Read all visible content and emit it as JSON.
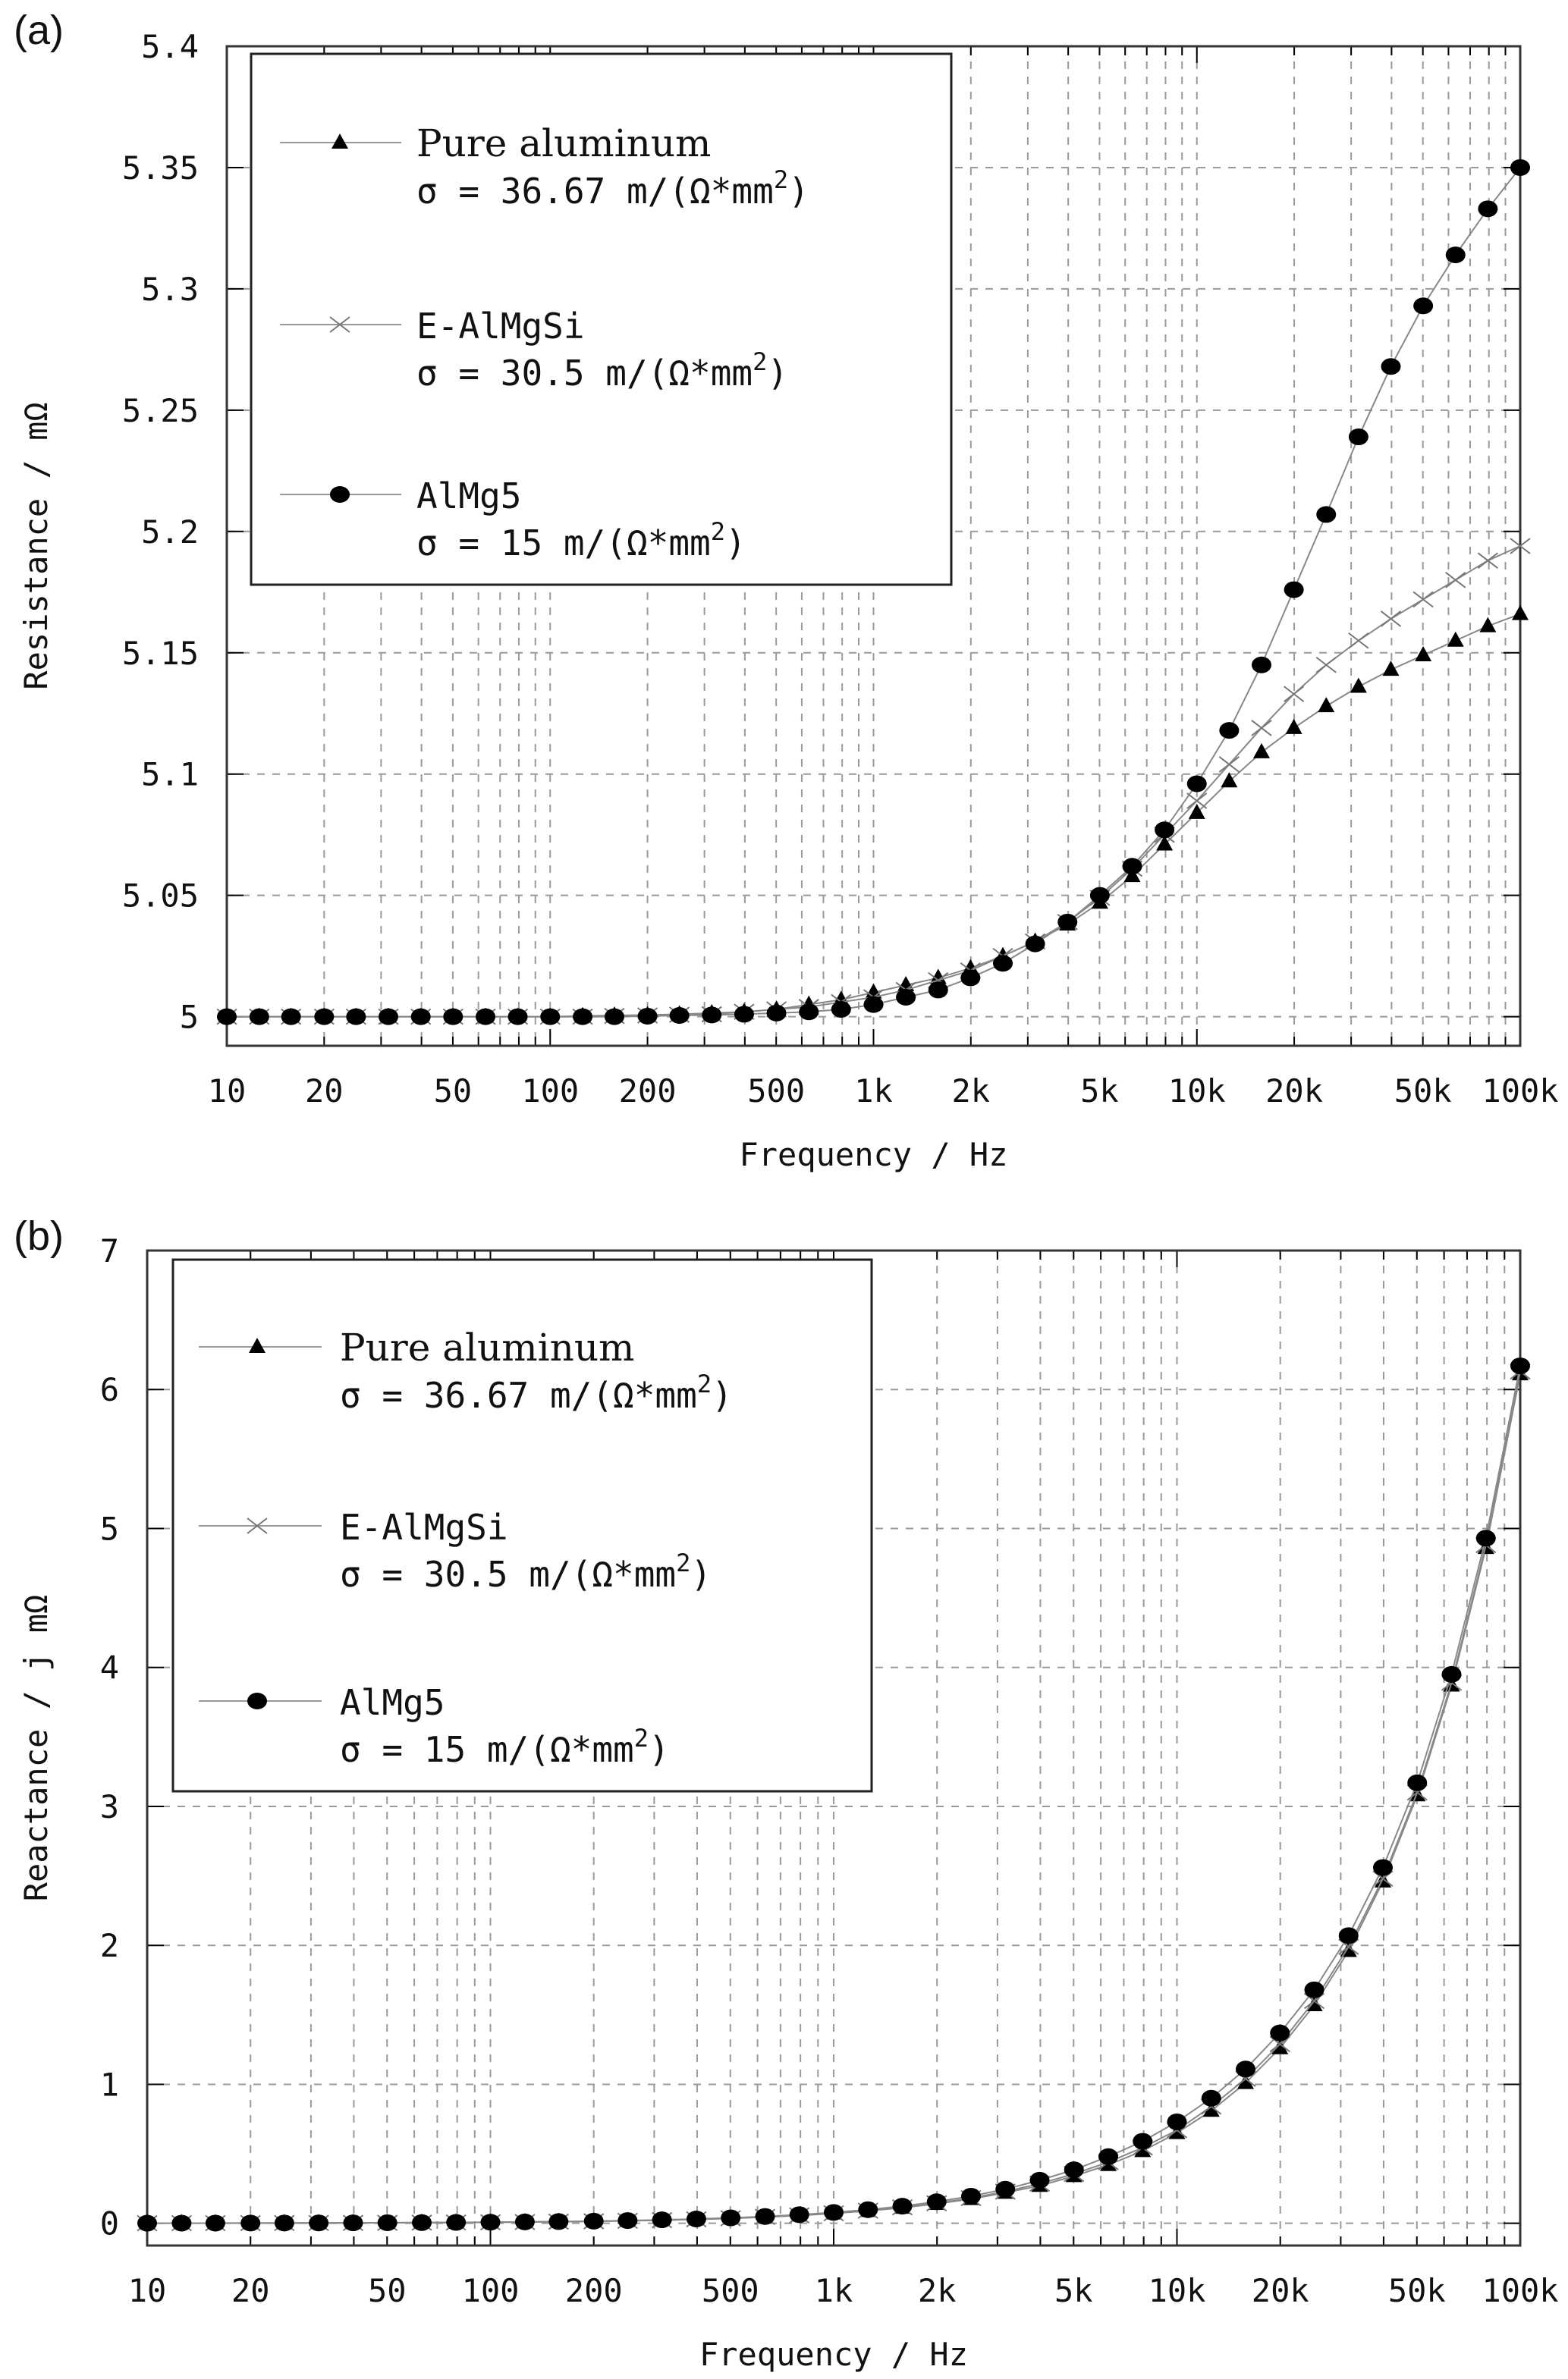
{
  "chart_data": [
    {
      "type": "line",
      "panel_label": "(a)",
      "xlabel": "Frequency / Hz",
      "ylabel": "Resistance / mΩ",
      "xscale": "log",
      "xlim": [
        10,
        100000
      ],
      "ylim": [
        4.988,
        5.4
      ],
      "grid": true,
      "legend_placement": "top-left",
      "x_ticks": [
        10,
        20,
        50,
        100,
        200,
        500,
        1000,
        2000,
        5000,
        10000,
        20000,
        50000,
        100000
      ],
      "x_tick_labels": [
        "10",
        "20",
        "50",
        "100",
        "200",
        "500",
        "1k",
        "2k",
        "5k",
        "10k",
        "20k",
        "50k",
        "100k"
      ],
      "y_ticks": [
        5,
        5.05,
        5.1,
        5.15,
        5.2,
        5.25,
        5.3,
        5.35,
        5.4
      ],
      "y_tick_labels": [
        "5",
        "5.05",
        "5.1",
        "5.15",
        "5.2",
        "5.25",
        "5.3",
        "5.35",
        "5.4"
      ],
      "x": [
        10,
        12.6,
        15.8,
        20,
        25.1,
        31.6,
        39.8,
        50.1,
        63.1,
        79.4,
        100,
        126,
        158,
        200,
        251,
        316,
        398,
        501,
        631,
        794,
        1000,
        1259,
        1585,
        1995,
        2512,
        3162,
        3981,
        5012,
        6310,
        7943,
        10000,
        12589,
        15849,
        19953,
        25119,
        31623,
        39811,
        50119,
        63096,
        79433,
        100000
      ],
      "series": [
        {
          "name": "Pure aluminum",
          "sigma": "σ  = 36.67 m/(Ω*mm",
          "sup": "2",
          "close": ")",
          "marker": "triangle",
          "color": "#000000",
          "values": [
            5,
            5,
            5,
            5,
            5,
            5,
            5,
            5,
            5,
            5,
            5,
            5.0003,
            5.0005,
            5.0007,
            5.001,
            5.0015,
            5.002,
            5.003,
            5.005,
            5.007,
            5.01,
            5.013,
            5.016,
            5.02,
            5.025,
            5.031,
            5.038,
            5.047,
            5.058,
            5.071,
            5.084,
            5.097,
            5.109,
            5.119,
            5.128,
            5.136,
            5.143,
            5.149,
            5.155,
            5.161,
            5.166
          ]
        },
        {
          "name": "E-AlMgSi",
          "sigma": "σ  = 30.5 m/(Ω*mm",
          "sup": "2",
          "close": ")",
          "marker": "cross",
          "color": "#777777",
          "values": [
            5,
            5,
            5,
            5,
            5,
            5,
            5,
            5,
            5,
            5,
            5,
            5,
            5.0003,
            5.0005,
            5.0008,
            5.001,
            5.002,
            5.003,
            5.004,
            5.006,
            5.008,
            5.011,
            5.015,
            5.019,
            5.025,
            5.031,
            5.039,
            5.049,
            5.061,
            5.075,
            5.089,
            5.104,
            5.119,
            5.133,
            5.145,
            5.155,
            5.164,
            5.172,
            5.18,
            5.188,
            5.194
          ]
        },
        {
          "name": "AlMg5",
          "sigma": "σ  = 15 m/(Ω*mm",
          "sup": "2",
          "close": ")",
          "marker": "circle",
          "color": "#000000",
          "values": [
            5,
            5,
            5,
            5,
            5,
            5,
            5,
            5,
            5,
            5,
            5,
            5,
            5,
            5.0002,
            5.0005,
            5.0007,
            5.001,
            5.0015,
            5.002,
            5.003,
            5.005,
            5.008,
            5.011,
            5.016,
            5.022,
            5.03,
            5.039,
            5.05,
            5.062,
            5.077,
            5.096,
            5.118,
            5.145,
            5.176,
            5.207,
            5.239,
            5.268,
            5.293,
            5.314,
            5.333,
            5.35
          ]
        }
      ]
    },
    {
      "type": "line",
      "panel_label": "(b)",
      "xlabel": "Frequency / Hz",
      "ylabel": "Reactance / j mΩ",
      "xscale": "log",
      "xlim": [
        10,
        100000
      ],
      "ylim": [
        -0.16,
        7
      ],
      "grid": true,
      "legend_placement": "top-left",
      "x_ticks": [
        10,
        20,
        50,
        100,
        200,
        500,
        1000,
        2000,
        5000,
        10000,
        20000,
        50000,
        100000
      ],
      "x_tick_labels": [
        "10",
        "20",
        "50",
        "100",
        "200",
        "500",
        "1k",
        "2k",
        "5k",
        "10k",
        "20k",
        "50k",
        "100k"
      ],
      "y_ticks": [
        0,
        1,
        2,
        3,
        4,
        5,
        6,
        7
      ],
      "y_tick_labels": [
        "0",
        "1",
        "2",
        "3",
        "4",
        "5",
        "6",
        "7"
      ],
      "x": [
        10,
        12.6,
        15.8,
        20,
        25.1,
        31.6,
        39.8,
        50.1,
        63.1,
        79.4,
        100,
        126,
        158,
        200,
        251,
        316,
        398,
        501,
        631,
        794,
        1000,
        1259,
        1585,
        1995,
        2512,
        3162,
        3981,
        5012,
        6310,
        7943,
        10000,
        12589,
        15849,
        19953,
        25119,
        31623,
        39811,
        50119,
        63096,
        79433,
        100000
      ],
      "series": [
        {
          "name": "Pure aluminum",
          "sigma": "σ  = 36.67 m/(Ω*mm",
          "sup": "2",
          "close": ")",
          "marker": "triangle",
          "color": "#000000",
          "values": [
            0.0007,
            0.0009,
            0.0011,
            0.0014,
            0.0018,
            0.0022,
            0.0028,
            0.0035,
            0.0045,
            0.0056,
            0.0071,
            0.0089,
            0.0112,
            0.014,
            0.0177,
            0.022,
            0.028,
            0.035,
            0.045,
            0.056,
            0.071,
            0.089,
            0.112,
            0.14,
            0.175,
            0.22,
            0.27,
            0.34,
            0.42,
            0.52,
            0.65,
            0.81,
            1.01,
            1.26,
            1.57,
            1.96,
            2.46,
            3.08,
            3.87,
            4.86,
            6.11
          ]
        },
        {
          "name": "E-AlMgSi",
          "sigma": "σ  = 30.5 m/(Ω*mm",
          "sup": "2",
          "close": ")",
          "marker": "cross",
          "color": "#777777",
          "values": [
            0.0007,
            0.0009,
            0.0011,
            0.0014,
            0.0018,
            0.0023,
            0.0029,
            0.0036,
            0.0046,
            0.0057,
            0.0072,
            0.009,
            0.0114,
            0.0143,
            0.018,
            0.0227,
            0.029,
            0.036,
            0.046,
            0.057,
            0.072,
            0.091,
            0.115,
            0.144,
            0.181,
            0.228,
            0.285,
            0.355,
            0.44,
            0.545,
            0.67,
            0.84,
            1.04,
            1.29,
            1.6,
            1.99,
            2.48,
            3.1,
            3.89,
            4.88,
            6.13
          ]
        },
        {
          "name": "AlMg5",
          "sigma": "σ  = 15 m/(Ω*mm",
          "sup": "2",
          "close": ")",
          "marker": "circle",
          "color": "#000000",
          "values": [
            0.0008,
            0.001,
            0.0012,
            0.0016,
            0.002,
            0.0025,
            0.0031,
            0.0039,
            0.0049,
            0.0062,
            0.0078,
            0.0098,
            0.0124,
            0.0156,
            0.0196,
            0.025,
            0.031,
            0.039,
            0.049,
            0.062,
            0.078,
            0.098,
            0.123,
            0.155,
            0.195,
            0.245,
            0.31,
            0.385,
            0.48,
            0.59,
            0.73,
            0.9,
            1.11,
            1.37,
            1.68,
            2.07,
            2.56,
            3.17,
            3.95,
            4.93,
            6.17
          ]
        }
      ]
    }
  ]
}
